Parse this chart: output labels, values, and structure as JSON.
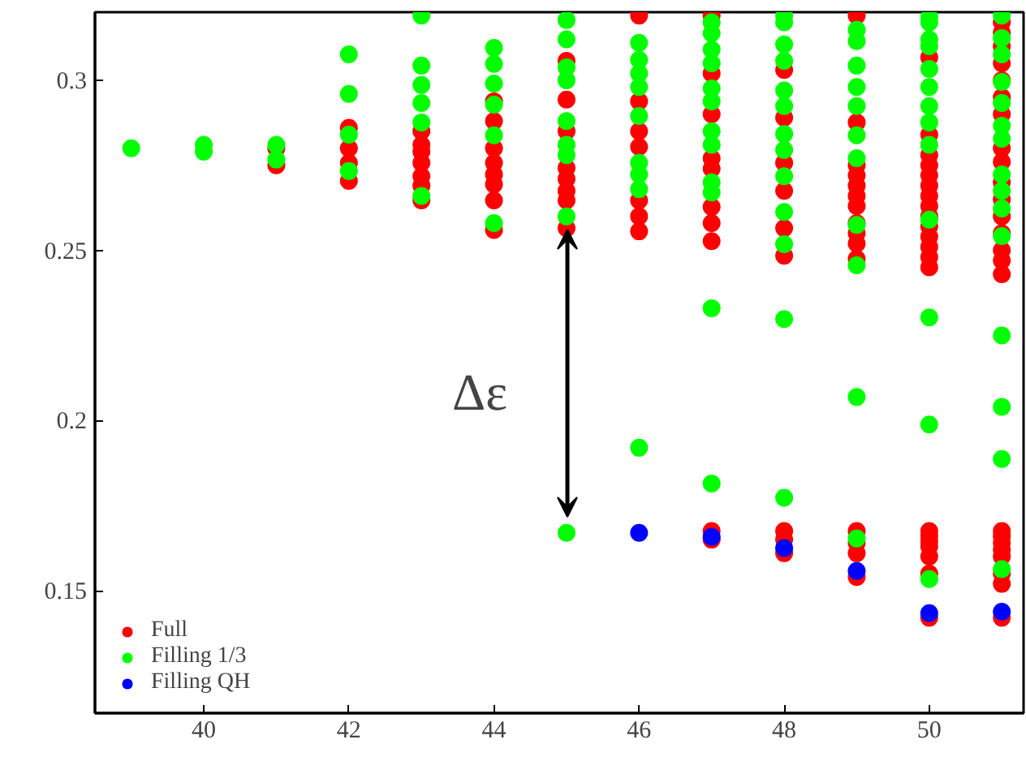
{
  "chart_data": {
    "type": "scatter",
    "marker": "circle",
    "grid": false,
    "legend": "bottom left",
    "xlim": [
      38.5,
      51.3
    ],
    "ylim": [
      0.114,
      0.32
    ],
    "xticks": [
      40,
      42,
      44,
      46,
      48,
      50
    ],
    "yticks": [
      0.15,
      0.2,
      0.25,
      0.3
    ],
    "annotations": [
      "Δε"
    ],
    "series": [
      {
        "name": "Full",
        "color": "#ff0000",
        "x": [
          41,
          41,
          42,
          42,
          42,
          42,
          43,
          43,
          43,
          43,
          43,
          43,
          43,
          44,
          44,
          44,
          44,
          44,
          44,
          44,
          44,
          45,
          45,
          45,
          45,
          45,
          45,
          45,
          45,
          46,
          46,
          46,
          46,
          46,
          46,
          46,
          47,
          47,
          47,
          47,
          47,
          47,
          47,
          47,
          47,
          47,
          48,
          48,
          48,
          48,
          48,
          48,
          48,
          48,
          48,
          49,
          49,
          49,
          49,
          49,
          49,
          49,
          49,
          49,
          49,
          49,
          49,
          49,
          49,
          49,
          50,
          50,
          50,
          50,
          50,
          50,
          50,
          50,
          50,
          50,
          50,
          50,
          50,
          50,
          50,
          50,
          50,
          50,
          50,
          50,
          50,
          51,
          51,
          51,
          51,
          51,
          51,
          51,
          51,
          51,
          51,
          51,
          51,
          51,
          51,
          51,
          51,
          51,
          51,
          51,
          51,
          51,
          51,
          51,
          51
        ],
        "values": [
          0.28,
          0.275,
          0.286,
          0.28,
          0.2757,
          0.2704,
          0.285,
          0.281,
          0.279,
          0.2757,
          0.2718,
          0.269,
          0.2647,
          0.2938,
          0.288,
          0.28,
          0.2757,
          0.2723,
          0.2694,
          0.2647,
          0.256,
          0.3057,
          0.2943,
          0.285,
          0.2742,
          0.271,
          0.2675,
          0.2647,
          0.2565,
          0.319,
          0.2938,
          0.285,
          0.2804,
          0.2647,
          0.26,
          0.2556,
          0.319,
          0.302,
          0.29,
          0.277,
          0.274,
          0.2628,
          0.258,
          0.2527,
          0.1675,
          0.165,
          0.303,
          0.289,
          0.2757,
          0.2675,
          0.2565,
          0.2484,
          0.1675,
          0.165,
          0.161,
          0.319,
          0.2876,
          0.275,
          0.272,
          0.269,
          0.266,
          0.263,
          0.258,
          0.255,
          0.252,
          0.2475,
          0.1675,
          0.164,
          0.161,
          0.154,
          0.3067,
          0.284,
          0.278,
          0.275,
          0.272,
          0.269,
          0.266,
          0.263,
          0.26,
          0.257,
          0.254,
          0.251,
          0.248,
          0.245,
          0.1675,
          0.166,
          0.1645,
          0.163,
          0.16,
          0.155,
          0.142,
          0.317,
          0.314,
          0.31,
          0.305,
          0.3,
          0.295,
          0.29,
          0.28,
          0.276,
          0.27,
          0.265,
          0.26,
          0.255,
          0.25,
          0.247,
          0.243,
          0.1675,
          0.166,
          0.164,
          0.162,
          0.16,
          0.155,
          0.152,
          0.142
        ]
      },
      {
        "name": "Filling 1/3",
        "color": "#00ff00",
        "x": [
          39,
          40,
          40,
          41,
          41,
          42,
          42,
          42,
          42,
          43,
          43,
          43,
          43,
          43,
          43,
          44,
          44,
          44,
          44,
          44,
          44,
          45,
          45,
          45,
          45,
          45,
          45,
          45,
          45,
          45,
          46,
          46,
          46,
          46,
          46,
          46,
          46,
          46,
          46,
          47,
          47,
          47,
          47,
          47,
          47,
          47,
          47,
          47,
          47,
          47,
          47,
          48,
          48,
          48,
          48,
          48,
          48,
          48,
          48,
          48,
          48,
          48,
          48,
          48,
          49,
          49,
          49,
          49,
          49,
          49,
          49,
          49,
          49,
          49,
          49,
          50,
          50,
          50,
          50,
          50,
          50,
          50,
          50,
          50,
          50,
          50,
          50,
          50,
          51,
          51,
          51,
          51,
          51,
          51,
          51,
          51,
          51,
          51,
          51,
          51,
          51,
          51,
          51
        ],
        "values": [
          0.28,
          0.281,
          0.279,
          0.281,
          0.2767,
          0.3076,
          0.296,
          0.284,
          0.2733,
          0.319,
          0.3043,
          0.2986,
          0.2933,
          0.2876,
          0.266,
          0.3095,
          0.3048,
          0.299,
          0.2928,
          0.2838,
          0.258,
          0.3177,
          0.312,
          0.3038,
          0.3,
          0.288,
          0.281,
          0.278,
          0.26,
          0.167,
          0.311,
          0.306,
          0.302,
          0.298,
          0.2895,
          0.2757,
          0.2723,
          0.268,
          0.192,
          0.317,
          0.3138,
          0.309,
          0.305,
          0.2976,
          0.2938,
          0.285,
          0.281,
          0.27,
          0.267,
          0.233,
          0.1815,
          0.319,
          0.317,
          0.3105,
          0.3057,
          0.297,
          0.2924,
          0.2842,
          0.2795,
          0.2718,
          0.2613,
          0.2518,
          0.2298,
          0.1773,
          0.3148,
          0.3115,
          0.3043,
          0.298,
          0.2924,
          0.2838,
          0.2771,
          0.2575,
          0.2456,
          0.2069,
          0.1653,
          0.3186,
          0.317,
          0.312,
          0.31,
          0.3033,
          0.298,
          0.2924,
          0.2876,
          0.281,
          0.259,
          0.2303,
          0.1988,
          0.1534,
          0.319,
          0.3124,
          0.3076,
          0.2995,
          0.2933,
          0.2866,
          0.2828,
          0.2723,
          0.2675,
          0.2623,
          0.2542,
          0.225,
          0.204,
          0.1887,
          0.1563
        ]
      },
      {
        "name": "Filling QH",
        "color": "#0000ff",
        "x": [
          46,
          47,
          48,
          49,
          50,
          51
        ],
        "values": [
          0.167,
          0.1658,
          0.1625,
          0.1558,
          0.1434,
          0.1438
        ]
      }
    ]
  }
}
